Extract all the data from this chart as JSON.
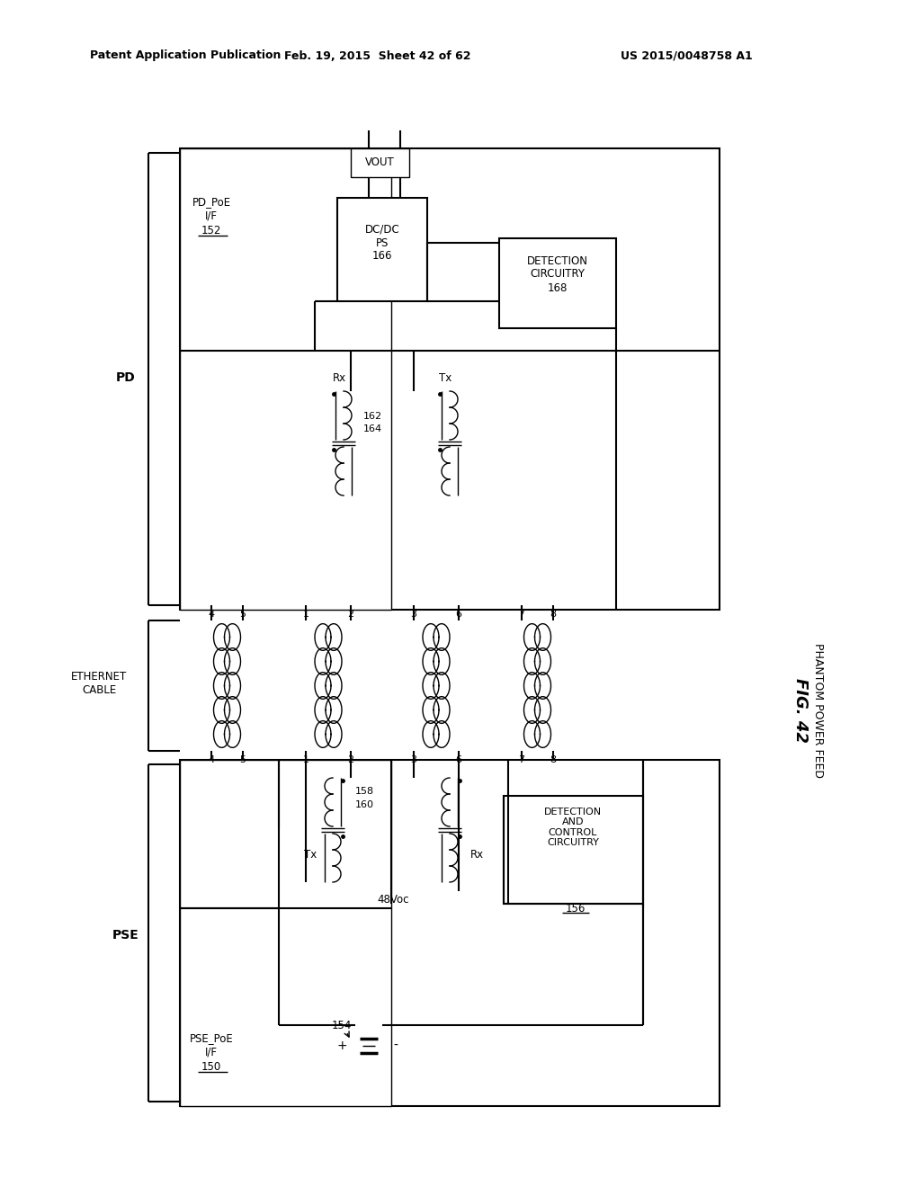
{
  "header_left": "Patent Application Publication",
  "header_center": "Feb. 19, 2015  Sheet 42 of 62",
  "header_right": "US 2015/0048758 A1",
  "background_color": "#ffffff",
  "fig_label": "FIG. 42",
  "fig_sublabel": "PHANTOM POWER FEED"
}
